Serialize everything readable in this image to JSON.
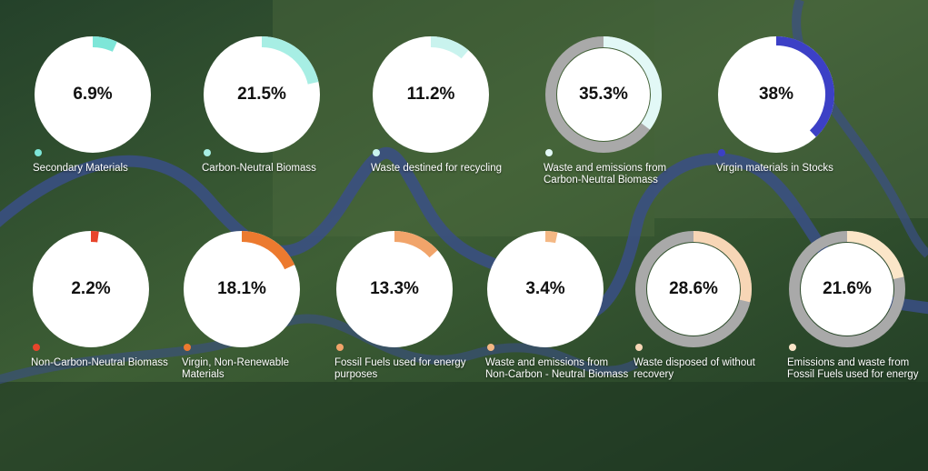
{
  "chart_data": {
    "type": "pie",
    "title": "",
    "series": [
      {
        "name": "Secondary Materials",
        "value": 6.9,
        "display": "6.9%",
        "color": "#7ee6d8",
        "style": "pie"
      },
      {
        "name": "Carbon-Neutral Biomass",
        "value": 21.5,
        "display": "21.5%",
        "color": "#a7eee4",
        "style": "pie"
      },
      {
        "name": "Waste destined for recycling",
        "value": 11.2,
        "display": "11.2%",
        "color": "#c9f3ee",
        "style": "pie"
      },
      {
        "name": "Waste and emissions from Carbon-Neutral Biomass",
        "value": 35.3,
        "display": "35.3%",
        "color": "#e2f8f6",
        "style": "ring"
      },
      {
        "name": "Virgin materials in Stocks",
        "value": 38,
        "display": "38%",
        "color": "#3c40c6",
        "style": "ring-thin"
      },
      {
        "name": "Non-Carbon-Neutral Biomass",
        "value": 2.2,
        "display": "2.2%",
        "color": "#e8452b",
        "style": "pie"
      },
      {
        "name": "Virgin, Non-Renewable Materials",
        "value": 18.1,
        "display": "18.1%",
        "color": "#ec7a2f",
        "style": "pie"
      },
      {
        "name": "Fossil Fuels used for energy purposes",
        "value": 13.3,
        "display": "13.3%",
        "color": "#f1a46a",
        "style": "pie"
      },
      {
        "name": "Waste and emissions from Non-Carbon - Neutral Biomass",
        "value": 3.4,
        "display": "3.4%",
        "color": "#f4b884",
        "style": "pie"
      },
      {
        "name": "Waste disposed of without recovery",
        "value": 28.6,
        "display": "28.6%",
        "color": "#f7d6b6",
        "style": "ring"
      },
      {
        "name": "Emissions and waste from Fossil Fuels used for energy",
        "value": 21.6,
        "display": "21.6%",
        "color": "#fbe6c8",
        "style": "ring"
      }
    ]
  },
  "colors": {
    "ring_track": "#a9a9a9",
    "disc": "#ffffff",
    "label_text": "#ffffff"
  }
}
